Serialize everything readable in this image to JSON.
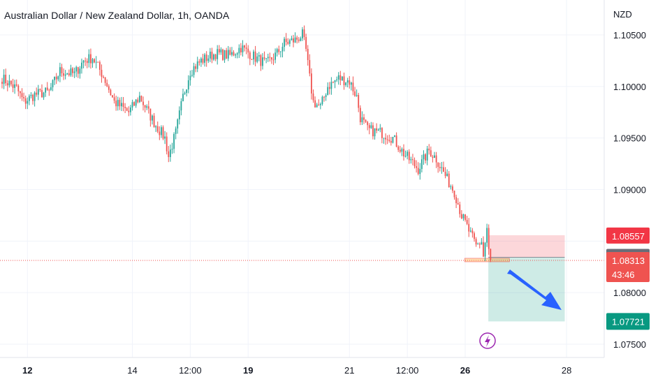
{
  "title": "Australian Dollar / New Zealand Dollar, 1h, OANDA",
  "currency": "NZD",
  "chart_data": {
    "type": "candlestick",
    "symbol": "AUDNZD",
    "timeframe": "1h",
    "ylim": [
      1.0735,
      1.1065
    ],
    "y_ticks": [
      "1.10500",
      "1.10000",
      "1.09500",
      "1.09000",
      "1.08000",
      "1.07500"
    ],
    "y_tick_values": [
      1.105,
      1.1,
      1.095,
      1.09,
      1.08,
      1.075
    ],
    "x_ticks": [
      {
        "label": "12",
        "bold": true,
        "bar": 14
      },
      {
        "label": "14",
        "bold": false,
        "bar": 72
      },
      {
        "label": "12:00",
        "bold": false,
        "bar": 104
      },
      {
        "label": "19",
        "bold": true,
        "bar": 136
      },
      {
        "label": "21",
        "bold": false,
        "bar": 192
      },
      {
        "label": "12:00",
        "bold": false,
        "bar": 224
      },
      {
        "label": "26",
        "bold": true,
        "bar": 256
      },
      {
        "label": "28",
        "bold": false,
        "bar": 312
      }
    ],
    "waypoints": [
      [
        0,
        1.1008
      ],
      [
        8,
        1.0998
      ],
      [
        12,
        1.0985
      ],
      [
        18,
        1.0992
      ],
      [
        26,
        1.0995
      ],
      [
        32,
        1.1015
      ],
      [
        40,
        1.1012
      ],
      [
        45,
        1.1025
      ],
      [
        50,
        1.1028
      ],
      [
        56,
        1.101
      ],
      [
        62,
        1.0985
      ],
      [
        70,
        1.0975
      ],
      [
        76,
        1.099
      ],
      [
        84,
        1.0965
      ],
      [
        90,
        1.095
      ],
      [
        92,
        1.0932
      ],
      [
        96,
        1.0955
      ],
      [
        100,
        1.099
      ],
      [
        104,
        1.1015
      ],
      [
        110,
        1.1025
      ],
      [
        118,
        1.1032
      ],
      [
        126,
        1.103
      ],
      [
        132,
        1.1038
      ],
      [
        140,
        1.1028
      ],
      [
        146,
        1.1022
      ],
      [
        152,
        1.1032
      ],
      [
        156,
        1.1042
      ],
      [
        162,
        1.1045
      ],
      [
        166,
        1.105
      ],
      [
        168,
        1.1035
      ],
      [
        170,
        1.1008
      ],
      [
        172,
        1.0985
      ],
      [
        176,
        1.098
      ],
      [
        180,
        1.1
      ],
      [
        186,
        1.1008
      ],
      [
        192,
        1.1005
      ],
      [
        196,
        1.099
      ],
      [
        198,
        1.097
      ],
      [
        202,
        1.0958
      ],
      [
        210,
        1.0955
      ],
      [
        216,
        1.095
      ],
      [
        222,
        1.0935
      ],
      [
        230,
        1.092
      ],
      [
        236,
        1.0938
      ],
      [
        240,
        1.093
      ],
      [
        246,
        1.091
      ],
      [
        250,
        1.0898
      ],
      [
        254,
        1.0875
      ],
      [
        258,
        1.086
      ],
      [
        262,
        1.0845
      ],
      [
        265,
        1.085
      ],
      [
        266,
        1.0835
      ],
      [
        268,
        1.0862
      ],
      [
        269,
        1.084
      ],
      [
        270,
        1.0831
      ]
    ],
    "last_bar": 270,
    "bar_spacing_px": 2.59,
    "bar0_px": 3,
    "current_price": "1.08313",
    "countdown": "43:46",
    "position": {
      "direction": "short",
      "stop_loss": "1.08557",
      "entry": "1.08343",
      "take_profit": "1.07721",
      "stop_loss_value": 1.08557,
      "entry_value": 1.08343,
      "take_profit_value": 1.07721,
      "start_bar": 268,
      "end_bar": 311
    },
    "colors": {
      "up": "#26a69a",
      "down": "#ef5350",
      "stop": "#f23645",
      "entry": "#6a6d78",
      "target": "#089981",
      "arrow": "#2962ff",
      "event": "#9c27b0"
    },
    "event_icon": "lightning-icon"
  }
}
